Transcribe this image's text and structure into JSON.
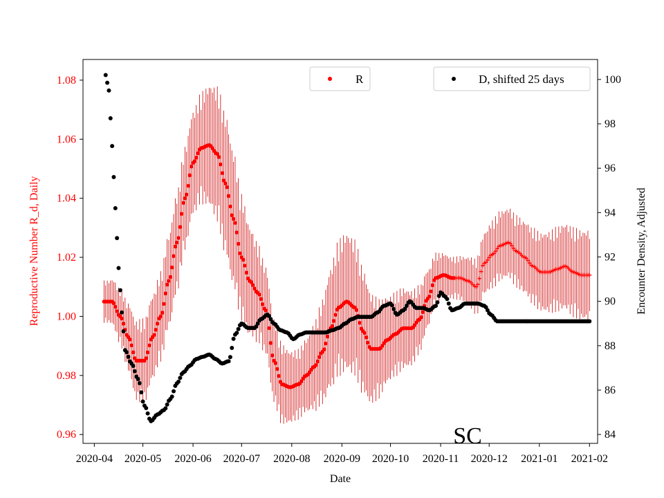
{
  "chart_data": {
    "type": "scatter",
    "state_label": "SC",
    "xlabel": "Date",
    "ylabel_left": "Reproductive Number R_d, Daily",
    "ylabel_right": "Encounter Density, Adjusted",
    "x_ticks": [
      "2020-04",
      "2020-05",
      "2020-06",
      "2020-07",
      "2020-08",
      "2020-09",
      "2020-10",
      "2020-11",
      "2020-12",
      "2021-01",
      "2021-02"
    ],
    "x_range": [
      "2020-03-25",
      "2021-02-06"
    ],
    "ylim_left": [
      0.957,
      1.087
    ],
    "ylim_right": [
      83.6,
      100.9
    ],
    "yticks_left": [
      "0.96",
      "0.98",
      "1.00",
      "1.02",
      "1.04",
      "1.06",
      "1.08"
    ],
    "yticks_right": [
      "84",
      "86",
      "88",
      "90",
      "92",
      "94",
      "96",
      "98",
      "100"
    ],
    "legend_r": "R",
    "legend_d": "D, shifted 25 days",
    "colors": {
      "r": "#ff0000",
      "err": "#cc0000",
      "d": "#000000",
      "left_axis": "#ff0000"
    },
    "series": [
      {
        "name": "R",
        "axis": "left",
        "color": "#ff0000",
        "keypoints": [
          [
            "2020-04-07",
            1.005
          ],
          [
            "2020-04-12",
            1.005
          ],
          [
            "2020-04-17",
            1.0
          ],
          [
            "2020-04-22",
            0.993
          ],
          [
            "2020-04-27",
            0.985
          ],
          [
            "2020-05-02",
            0.985
          ],
          [
            "2020-05-07",
            0.993
          ],
          [
            "2020-05-12",
            1.0
          ],
          [
            "2020-05-17",
            1.012
          ],
          [
            "2020-05-22",
            1.025
          ],
          [
            "2020-05-27",
            1.04
          ],
          [
            "2020-06-01",
            1.052
          ],
          [
            "2020-06-06",
            1.057
          ],
          [
            "2020-06-11",
            1.058
          ],
          [
            "2020-06-16",
            1.055
          ],
          [
            "2020-06-21",
            1.045
          ],
          [
            "2020-06-26",
            1.033
          ],
          [
            "2020-07-01",
            1.02
          ],
          [
            "2020-07-06",
            1.012
          ],
          [
            "2020-07-11",
            1.008
          ],
          [
            "2020-07-16",
            1.002
          ],
          [
            "2020-07-21",
            0.985
          ],
          [
            "2020-07-26",
            0.977
          ],
          [
            "2020-07-31",
            0.976
          ],
          [
            "2020-08-05",
            0.977
          ],
          [
            "2020-08-10",
            0.98
          ],
          [
            "2020-08-15",
            0.983
          ],
          [
            "2020-08-20",
            0.988
          ],
          [
            "2020-08-25",
            0.996
          ],
          [
            "2020-08-30",
            1.003
          ],
          [
            "2020-09-04",
            1.005
          ],
          [
            "2020-09-09",
            1.003
          ],
          [
            "2020-09-14",
            0.995
          ],
          [
            "2020-09-19",
            0.989
          ],
          [
            "2020-09-24",
            0.989
          ],
          [
            "2020-09-29",
            0.992
          ],
          [
            "2020-10-04",
            0.994
          ],
          [
            "2020-10-09",
            0.996
          ],
          [
            "2020-10-14",
            0.996
          ],
          [
            "2020-10-19",
            0.999
          ],
          [
            "2020-10-24",
            1.006
          ],
          [
            "2020-10-29",
            1.013
          ],
          [
            "2020-11-03",
            1.014
          ],
          [
            "2020-11-08",
            1.013
          ],
          [
            "2020-11-13",
            1.013
          ],
          [
            "2020-11-18",
            1.012
          ],
          [
            "2020-11-23",
            1.01
          ],
          [
            "2020-11-28",
            1.018
          ],
          [
            "2020-12-03",
            1.021
          ],
          [
            "2020-12-08",
            1.024
          ],
          [
            "2020-12-13",
            1.025
          ],
          [
            "2020-12-18",
            1.022
          ],
          [
            "2020-12-23",
            1.02
          ],
          [
            "2020-12-28",
            1.017
          ],
          [
            "2021-01-02",
            1.015
          ],
          [
            "2021-01-07",
            1.015
          ],
          [
            "2021-01-12",
            1.016
          ],
          [
            "2021-01-17",
            1.017
          ],
          [
            "2021-01-22",
            1.015
          ],
          [
            "2021-01-27",
            1.014
          ],
          [
            "2021-02-01",
            1.014
          ]
        ],
        "error_halfwidth": [
          [
            "2020-04-07",
            0.006
          ],
          [
            "2020-05-02",
            0.012
          ],
          [
            "2020-06-01",
            0.015
          ],
          [
            "2020-06-21",
            0.02
          ],
          [
            "2020-07-21",
            0.012
          ],
          [
            "2020-08-05",
            0.01
          ],
          [
            "2020-09-04",
            0.02
          ],
          [
            "2020-10-04",
            0.012
          ],
          [
            "2020-11-08",
            0.006
          ],
          [
            "2020-12-08",
            0.01
          ],
          [
            "2021-02-01",
            0.013
          ]
        ]
      },
      {
        "name": "D, shifted 25 days",
        "axis": "right",
        "color": "#000000",
        "keypoints": [
          [
            "2020-04-08",
            100.2
          ],
          [
            "2020-04-10",
            99.5
          ],
          [
            "2020-04-12",
            97.0
          ],
          [
            "2020-04-14",
            94.2
          ],
          [
            "2020-04-16",
            91.5
          ],
          [
            "2020-04-18",
            89.5
          ],
          [
            "2020-04-20",
            87.8
          ],
          [
            "2020-04-24",
            87.2
          ],
          [
            "2020-04-28",
            86.5
          ],
          [
            "2020-05-02",
            85.3
          ],
          [
            "2020-05-06",
            84.6
          ],
          [
            "2020-05-10",
            84.9
          ],
          [
            "2020-05-14",
            85.1
          ],
          [
            "2020-05-18",
            85.6
          ],
          [
            "2020-05-22",
            86.3
          ],
          [
            "2020-05-26",
            86.8
          ],
          [
            "2020-05-30",
            87.1
          ],
          [
            "2020-06-03",
            87.4
          ],
          [
            "2020-06-07",
            87.5
          ],
          [
            "2020-06-11",
            87.6
          ],
          [
            "2020-06-15",
            87.4
          ],
          [
            "2020-06-19",
            87.2
          ],
          [
            "2020-06-23",
            87.3
          ],
          [
            "2020-06-27",
            88.5
          ],
          [
            "2020-07-01",
            89.0
          ],
          [
            "2020-07-05",
            88.8
          ],
          [
            "2020-07-09",
            88.8
          ],
          [
            "2020-07-13",
            89.2
          ],
          [
            "2020-07-17",
            89.4
          ],
          [
            "2020-07-21",
            89.0
          ],
          [
            "2020-07-25",
            88.7
          ],
          [
            "2020-07-29",
            88.6
          ],
          [
            "2020-08-02",
            88.3
          ],
          [
            "2020-08-06",
            88.5
          ],
          [
            "2020-08-10",
            88.6
          ],
          [
            "2020-08-14",
            88.6
          ],
          [
            "2020-08-18",
            88.6
          ],
          [
            "2020-08-22",
            88.6
          ],
          [
            "2020-08-26",
            88.7
          ],
          [
            "2020-08-30",
            88.8
          ],
          [
            "2020-09-03",
            89.0
          ],
          [
            "2020-09-07",
            89.2
          ],
          [
            "2020-09-11",
            89.3
          ],
          [
            "2020-09-15",
            89.3
          ],
          [
            "2020-09-19",
            89.3
          ],
          [
            "2020-09-23",
            89.5
          ],
          [
            "2020-09-27",
            89.8
          ],
          [
            "2020-10-01",
            89.9
          ],
          [
            "2020-10-05",
            89.4
          ],
          [
            "2020-10-09",
            89.6
          ],
          [
            "2020-10-13",
            90.0
          ],
          [
            "2020-10-17",
            89.7
          ],
          [
            "2020-10-21",
            89.7
          ],
          [
            "2020-10-25",
            89.6
          ],
          [
            "2020-10-29",
            89.8
          ],
          [
            "2020-11-01",
            90.4
          ],
          [
            "2020-11-04",
            90.2
          ],
          [
            "2020-11-08",
            89.6
          ],
          [
            "2020-11-12",
            89.7
          ],
          [
            "2020-11-16",
            89.9
          ],
          [
            "2020-11-20",
            89.9
          ],
          [
            "2020-11-24",
            89.9
          ],
          [
            "2020-11-28",
            89.8
          ],
          [
            "2020-12-02",
            89.4
          ],
          [
            "2020-12-06",
            89.1
          ],
          [
            "2021-02-01",
            89.1
          ]
        ]
      }
    ]
  }
}
